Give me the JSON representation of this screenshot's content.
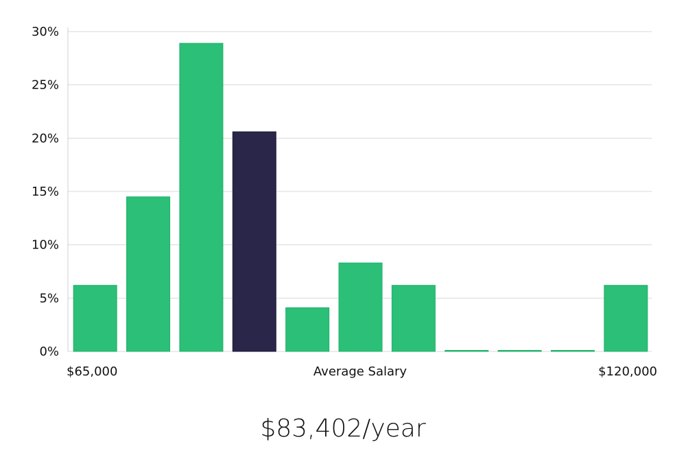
{
  "chart_data": {
    "type": "bar",
    "title": "",
    "xlabel": "Average Salary",
    "ylabel": "",
    "x_min_label": "$65,000",
    "x_max_label": "$120,000",
    "ylim": [
      0,
      30
    ],
    "y_ticks": [
      0,
      5,
      10,
      15,
      20,
      25,
      30
    ],
    "y_tick_labels": [
      "0%",
      "5%",
      "10%",
      "15%",
      "20%",
      "25%",
      "30%"
    ],
    "grid": true,
    "values": [
      6.2,
      14.5,
      28.9,
      20.6,
      4.1,
      8.3,
      6.2,
      0,
      0,
      0,
      6.2
    ],
    "highlight_index": 3,
    "bar_color": "#2bbf77",
    "highlight_color": "#29264a"
  },
  "summary": {
    "average_salary_label": "$83,402/year"
  }
}
